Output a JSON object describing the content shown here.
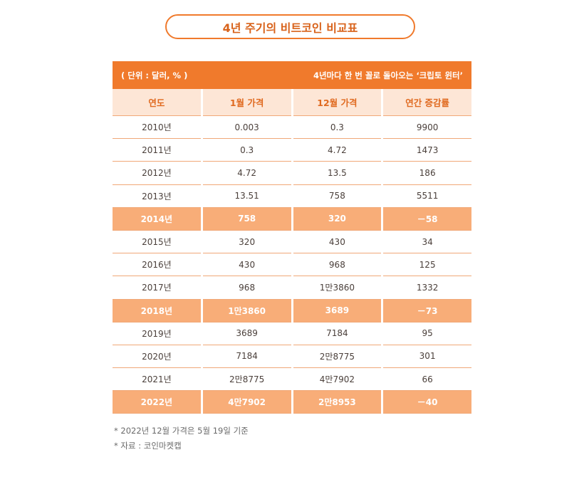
{
  "title": "4년 주기의 비트코인 비교표",
  "header": {
    "unit": "( 단위 : 달러, % )",
    "subtitle": "4년마다 한 번 꼴로 돌아오는 ‘크립토 윈터’"
  },
  "columns": [
    "연도",
    "1월 가격",
    "12월 가격",
    "연간 증감률"
  ],
  "rows": [
    {
      "cells": [
        "2010년",
        "0.003",
        "0.3",
        "9900"
      ],
      "highlight": false
    },
    {
      "cells": [
        "2011년",
        "0.3",
        "4.72",
        "1473"
      ],
      "highlight": false
    },
    {
      "cells": [
        "2012년",
        "4.72",
        "13.5",
        "186"
      ],
      "highlight": false
    },
    {
      "cells": [
        "2013년",
        "13.51",
        "758",
        "5511"
      ],
      "highlight": false
    },
    {
      "cells": [
        "2014년",
        "758",
        "320",
        "－58"
      ],
      "highlight": true
    },
    {
      "cells": [
        "2015년",
        "320",
        "430",
        "34"
      ],
      "highlight": false
    },
    {
      "cells": [
        "2016년",
        "430",
        "968",
        "125"
      ],
      "highlight": false
    },
    {
      "cells": [
        "2017년",
        "968",
        "1만3860",
        "1332"
      ],
      "highlight": false
    },
    {
      "cells": [
        "2018년",
        "1만3860",
        "3689",
        "－73"
      ],
      "highlight": true
    },
    {
      "cells": [
        "2019년",
        "3689",
        "7184",
        "95"
      ],
      "highlight": false
    },
    {
      "cells": [
        "2020년",
        "7184",
        "2만8775",
        "301"
      ],
      "highlight": false
    },
    {
      "cells": [
        "2021년",
        "2만8775",
        "4만7902",
        "66"
      ],
      "highlight": false
    },
    {
      "cells": [
        "2022년",
        "4만7902",
        "2만8953",
        "－40"
      ],
      "highlight": true
    }
  ],
  "notes": [
    "* 2022년 12월 가격은 5월 19일 기준",
    "* 자료 : 코인마켓캡"
  ],
  "colors": {
    "accent": "#f07a2c",
    "header_fill": "#fde6d6",
    "highlight_fill": "#f8ad78"
  }
}
